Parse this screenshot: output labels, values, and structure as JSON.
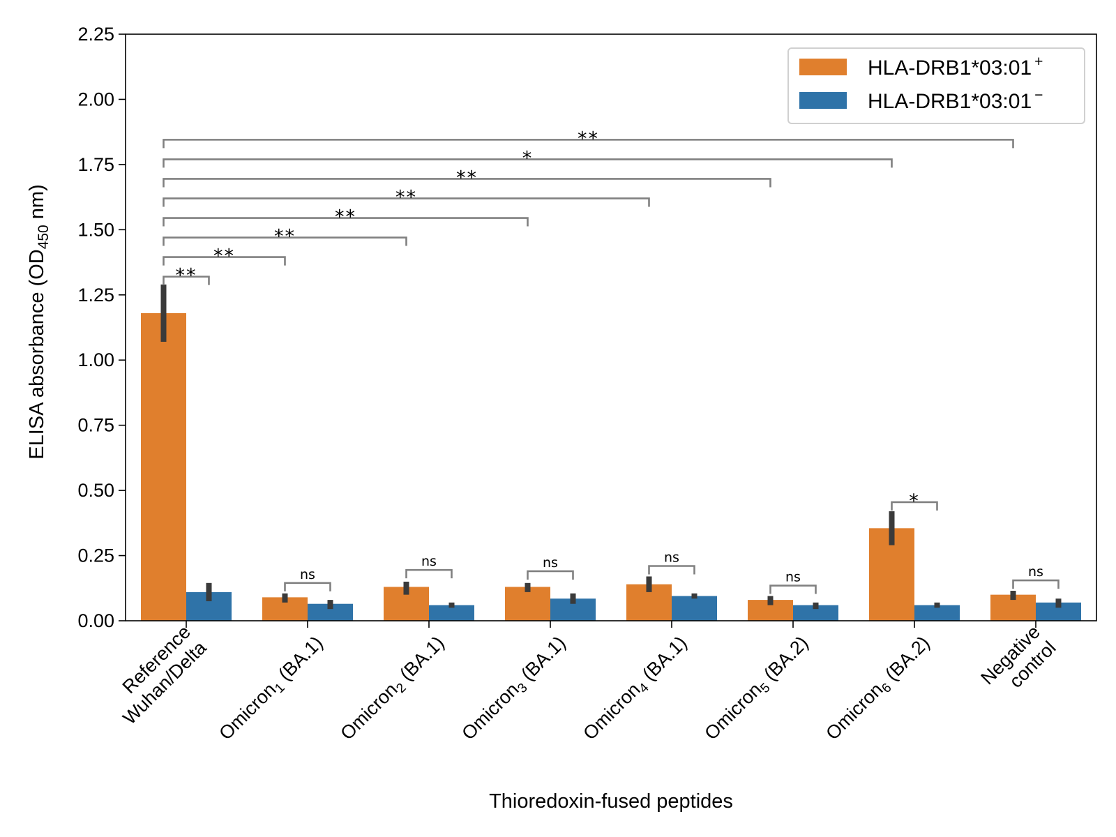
{
  "chart_data": {
    "type": "bar",
    "xlabel": "Thioredoxin-fused peptides",
    "ylabel": "ELISA absorbance (OD",
    "ylabel_sub": "450",
    "ylabel_suffix": " nm)",
    "ylim": [
      0,
      2.25
    ],
    "yticks": [
      "0.00",
      "0.25",
      "0.50",
      "0.75",
      "1.00",
      "1.25",
      "1.50",
      "1.75",
      "2.00",
      "2.25"
    ],
    "grid": false,
    "legend_position": "top-right",
    "categories": [
      {
        "line1": "Reference",
        "line2": "Wuhan/Delta"
      },
      {
        "line1": "Omicron",
        "sub": "1",
        "tail": " (BA.1)"
      },
      {
        "line1": "Omicron",
        "sub": "2",
        "tail": " (BA.1)"
      },
      {
        "line1": "Omicron",
        "sub": "3",
        "tail": " (BA.1)"
      },
      {
        "line1": "Omicron",
        "sub": "4",
        "tail": " (BA.1)"
      },
      {
        "line1": "Omicron",
        "sub": "5",
        "tail": " (BA.2)"
      },
      {
        "line1": "Omicron",
        "sub": "6",
        "tail": " (BA.2)"
      },
      {
        "line1": "Negative",
        "line2": "control"
      }
    ],
    "series": [
      {
        "name": "HLA-DRB1*03:01",
        "superscript": "+",
        "color": "#e07f2d",
        "values": [
          1.18,
          0.09,
          0.13,
          0.13,
          0.14,
          0.08,
          0.355,
          0.1
        ],
        "err_low": [
          1.07,
          0.07,
          0.1,
          0.11,
          0.11,
          0.06,
          0.29,
          0.08
        ],
        "err_high": [
          1.29,
          0.105,
          0.15,
          0.145,
          0.17,
          0.095,
          0.42,
          0.115
        ]
      },
      {
        "name": "HLA-DRB1*03:01",
        "superscript": "−",
        "color": "#2f73a8",
        "values": [
          0.11,
          0.065,
          0.06,
          0.085,
          0.095,
          0.06,
          0.06,
          0.07
        ],
        "err_low": [
          0.075,
          0.045,
          0.05,
          0.065,
          0.085,
          0.045,
          0.05,
          0.05
        ],
        "err_high": [
          0.145,
          0.08,
          0.07,
          0.105,
          0.105,
          0.07,
          0.07,
          0.085
        ]
      }
    ],
    "significance": [
      {
        "from": 0,
        "from_series": 0,
        "to": 0,
        "to_series": 1,
        "label": "**",
        "y": 1.32
      },
      {
        "from": 0,
        "from_series": 0,
        "to": 1,
        "to_series": 0,
        "label": "**",
        "y": 1.395
      },
      {
        "from": 0,
        "from_series": 0,
        "to": 2,
        "to_series": 0,
        "label": "**",
        "y": 1.47
      },
      {
        "from": 0,
        "from_series": 0,
        "to": 3,
        "to_series": 0,
        "label": "**",
        "y": 1.545
      },
      {
        "from": 0,
        "from_series": 0,
        "to": 4,
        "to_series": 0,
        "label": "**",
        "y": 1.62
      },
      {
        "from": 0,
        "from_series": 0,
        "to": 5,
        "to_series": 0,
        "label": "**",
        "y": 1.695
      },
      {
        "from": 0,
        "from_series": 0,
        "to": 6,
        "to_series": 0,
        "label": "*",
        "y": 1.77
      },
      {
        "from": 0,
        "from_series": 0,
        "to": 7,
        "to_series": 0,
        "label": "**",
        "y": 1.845
      },
      {
        "from": 1,
        "from_series": 0,
        "to": 1,
        "to_series": 1,
        "label": "ns",
        "y": 0.145
      },
      {
        "from": 2,
        "from_series": 0,
        "to": 2,
        "to_series": 1,
        "label": "ns",
        "y": 0.195
      },
      {
        "from": 3,
        "from_series": 0,
        "to": 3,
        "to_series": 1,
        "label": "ns",
        "y": 0.19
      },
      {
        "from": 4,
        "from_series": 0,
        "to": 4,
        "to_series": 1,
        "label": "ns",
        "y": 0.21
      },
      {
        "from": 5,
        "from_series": 0,
        "to": 5,
        "to_series": 1,
        "label": "ns",
        "y": 0.135
      },
      {
        "from": 6,
        "from_series": 0,
        "to": 6,
        "to_series": 1,
        "label": "*",
        "y": 0.455
      },
      {
        "from": 7,
        "from_series": 0,
        "to": 7,
        "to_series": 1,
        "label": "ns",
        "y": 0.155
      }
    ]
  }
}
